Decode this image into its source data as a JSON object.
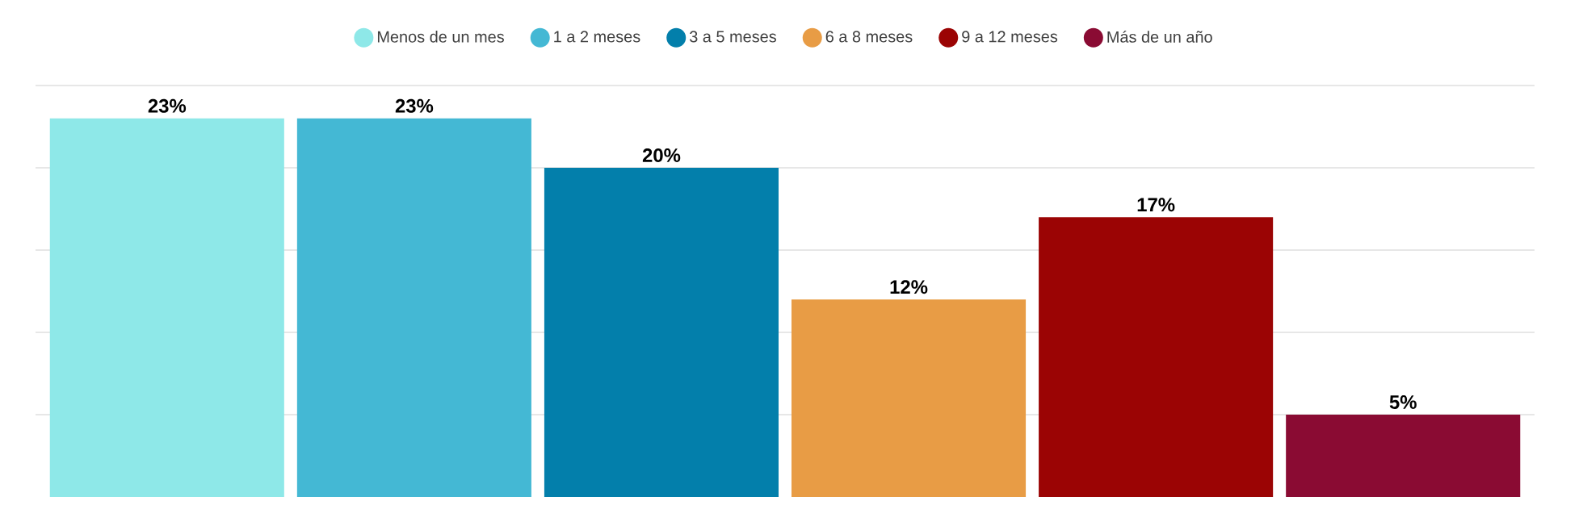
{
  "chart_data": {
    "type": "bar",
    "categories": [
      null
    ],
    "series": [
      {
        "name": "Menos de un mes",
        "color": "#8ee8e8",
        "values": [
          23
        ],
        "value_labels": [
          "23%"
        ]
      },
      {
        "name": "1 a 2 meses",
        "color": "#44b8d4",
        "values": [
          23
        ],
        "value_labels": [
          "23%"
        ]
      },
      {
        "name": "3 a 5 meses",
        "color": "#037fab",
        "values": [
          20
        ],
        "value_labels": [
          "20%"
        ]
      },
      {
        "name": "6 a 8 meses",
        "color": "#e89c45",
        "values": [
          12
        ],
        "value_labels": [
          "12%"
        ]
      },
      {
        "name": "9 a 12 meses",
        "color": "#9b0404",
        "values": [
          17
        ],
        "value_labels": [
          "17%"
        ]
      },
      {
        "name": "Más de un año",
        "color": "#8a0b33",
        "values": [
          5
        ],
        "value_labels": [
          "5%"
        ]
      }
    ],
    "ylim": [
      0,
      25
    ],
    "yticks": [
      {
        "value": 5,
        "label": null
      },
      {
        "value": 10,
        "label": null
      },
      {
        "value": 15,
        "label": null
      },
      {
        "value": 20,
        "label": null
      },
      {
        "value": 25,
        "label": null
      }
    ],
    "grid": "y",
    "legend": "top"
  }
}
